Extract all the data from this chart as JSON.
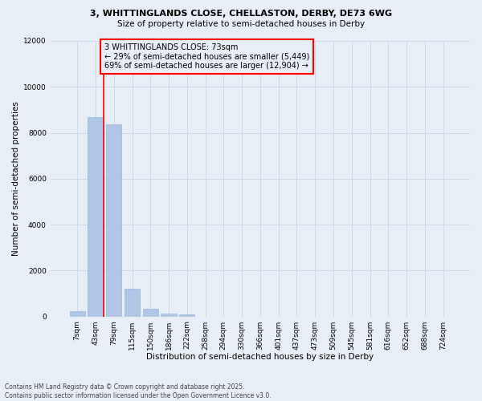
{
  "title_line1": "3, WHITTINGLANDS CLOSE, CHELLASTON, DERBY, DE73 6WG",
  "title_line2": "Size of property relative to semi-detached houses in Derby",
  "xlabel": "Distribution of semi-detached houses by size in Derby",
  "ylabel": "Number of semi-detached properties",
  "footer_line1": "Contains HM Land Registry data © Crown copyright and database right 2025.",
  "footer_line2": "Contains public sector information licensed under the Open Government Licence v3.0.",
  "annotation_title": "3 WHITTINGLANDS CLOSE: 73sqm",
  "annotation_line2": "← 29% of semi-detached houses are smaller (5,449)",
  "annotation_line3": "69% of semi-detached houses are larger (12,904) →",
  "bar_categories": [
    "7sqm",
    "43sqm",
    "79sqm",
    "115sqm",
    "150sqm",
    "186sqm",
    "222sqm",
    "258sqm",
    "294sqm",
    "330sqm",
    "366sqm",
    "401sqm",
    "437sqm",
    "473sqm",
    "509sqm",
    "545sqm",
    "581sqm",
    "616sqm",
    "652sqm",
    "688sqm",
    "724sqm"
  ],
  "bar_values": [
    230,
    8680,
    8380,
    1200,
    330,
    135,
    75,
    0,
    0,
    0,
    0,
    0,
    0,
    0,
    0,
    0,
    0,
    0,
    0,
    0,
    0
  ],
  "bar_color": "#aec6e8",
  "bar_edge_color": "#9ab8d8",
  "vline_color": "red",
  "vline_x_index": 1.42,
  "annotation_box_color": "red",
  "grid_color": "#c8d4e8",
  "background_color": "#e8eef5",
  "ylim": [
    0,
    12000
  ],
  "yticks": [
    0,
    2000,
    4000,
    6000,
    8000,
    10000,
    12000
  ],
  "title_fontsize": 8,
  "subtitle_fontsize": 7.5,
  "tick_fontsize": 6.5,
  "ylabel_fontsize": 7.5,
  "xlabel_fontsize": 7.5,
  "footer_fontsize": 5.5,
  "annotation_fontsize": 7
}
